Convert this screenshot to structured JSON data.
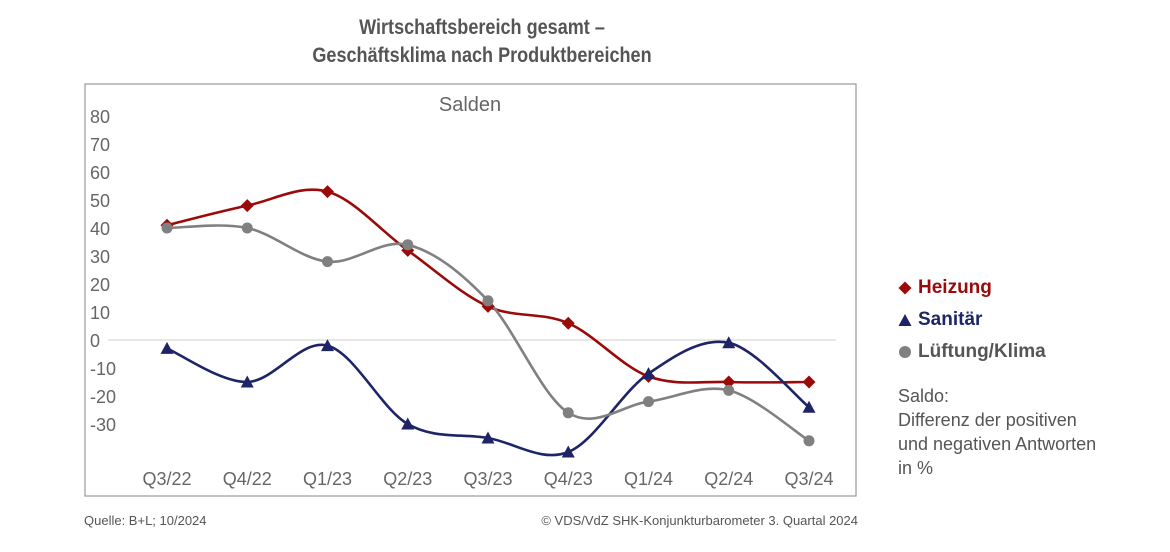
{
  "header": {
    "title_line1": "Wirtschaftsbereich gesamt –",
    "title_line2": "Geschäftsklima nach Produktbereichen"
  },
  "chart_data": {
    "type": "line",
    "subtitle": "Salden",
    "categories": [
      "Q3/22",
      "Q4/22",
      "Q1/23",
      "Q2/23",
      "Q3/23",
      "Q4/23",
      "Q1/24",
      "Q2/24",
      "Q3/24"
    ],
    "y_ticks": [
      80,
      70,
      60,
      50,
      40,
      30,
      20,
      10,
      0,
      -10,
      -20,
      -30
    ],
    "y_tick_labels": [
      "80",
      "70",
      "60",
      "50",
      "40",
      "30",
      "20",
      "10",
      "0",
      "-10",
      "-20",
      "-30"
    ],
    "ylim": [
      -42,
      80
    ],
    "grid": false,
    "zero_line": true,
    "legend_position": "right",
    "series": [
      {
        "name": "Heizung",
        "color": "#9b0a0a",
        "marker": "diamond",
        "values": [
          41,
          48,
          53,
          32,
          12,
          6,
          -13,
          -15,
          -15
        ]
      },
      {
        "name": "Sanitär",
        "color": "#1e2566",
        "marker": "triangle",
        "values": [
          -3,
          -15,
          -2,
          -30,
          -35,
          -40,
          -12,
          -1,
          -24
        ]
      },
      {
        "name": "Lüftung/Klima",
        "color": "#808080",
        "marker": "circle",
        "values": [
          40,
          40,
          28,
          34,
          14,
          -26,
          -22,
          -18,
          -36
        ]
      }
    ]
  },
  "note": {
    "line1": "Saldo:",
    "line2": "Differenz der positiven",
    "line3": "und negativen Antworten",
    "line4": "in %"
  },
  "footer": {
    "source": "Quelle: B+L; 10/2024",
    "copyright": "© VDS/VdZ SHK-Konjunkturbarometer 3. Quartal 2024"
  }
}
